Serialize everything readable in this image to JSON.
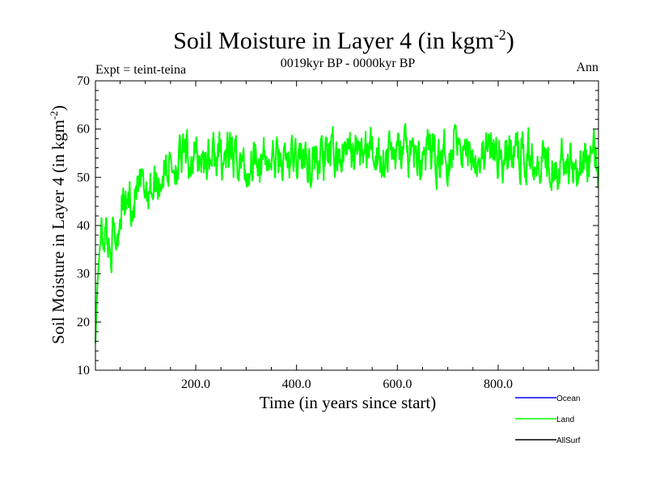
{
  "chart_data": {
    "type": "line",
    "title": "Soil Moisture in Layer 4 (in kgm",
    "title_sup": "-2",
    "title_end": ")",
    "subtitle": "0019kyr BP - 0000kyr BP",
    "left_label": "Expt = teint-teina",
    "right_label": "Ann",
    "xlabel": "Time (in years since start)",
    "ylabel": "Soil Moisture in Layer 4 (in kgm",
    "ylabel_sup": "-2",
    "ylabel_end": ")",
    "xlim": [
      1,
      999
    ],
    "ylim": [
      10,
      70
    ],
    "x_ticks": [
      200,
      400,
      600,
      800
    ],
    "x_tick_labels": [
      "200.0",
      "400.0",
      "600.0",
      "800.0"
    ],
    "y_ticks": [
      10,
      20,
      30,
      40,
      50,
      60,
      70
    ],
    "y_tick_labels": [
      "10",
      "20",
      "30",
      "40",
      "50",
      "60",
      "70"
    ],
    "legend": [
      {
        "name": "Ocean",
        "color": "#0000ff"
      },
      {
        "name": "Land",
        "color": "#00ff00"
      },
      {
        "name": "AllSurf",
        "color": "#000000"
      }
    ],
    "series": [
      {
        "name": "Land",
        "color": "#00ff00",
        "x": [
          1,
          5,
          10,
          15,
          20,
          25,
          30,
          35,
          40,
          45,
          50,
          55,
          60,
          65,
          70,
          75,
          80,
          90,
          100,
          110,
          120,
          130,
          140,
          150,
          170,
          190,
          210,
          230,
          250,
          270,
          290,
          300,
          310,
          320,
          330,
          350,
          370,
          390,
          410,
          430,
          450,
          470,
          490,
          510,
          530,
          550,
          570,
          590,
          610,
          630,
          650,
          670,
          690,
          710,
          715,
          730,
          750,
          770,
          790,
          810,
          830,
          850,
          870,
          890,
          910,
          930,
          950,
          970,
          990,
          999
        ],
        "values": [
          16,
          28,
          36,
          38,
          40,
          37,
          35,
          38,
          36,
          39,
          44,
          46,
          43,
          45,
          46,
          44,
          46,
          47,
          48,
          48,
          49,
          50,
          52,
          53,
          53,
          54,
          54,
          54,
          54,
          54,
          53,
          51,
          53,
          57,
          53,
          53,
          54,
          53,
          54,
          54,
          54,
          54,
          55,
          55,
          55,
          55,
          55,
          55,
          55,
          54,
          54,
          55,
          54,
          56,
          62,
          56,
          55,
          55,
          55,
          54,
          55,
          55,
          55,
          55,
          54,
          53,
          53,
          53,
          54,
          52
        ],
        "noise": 2.8,
        "seed": 42
      }
    ]
  }
}
